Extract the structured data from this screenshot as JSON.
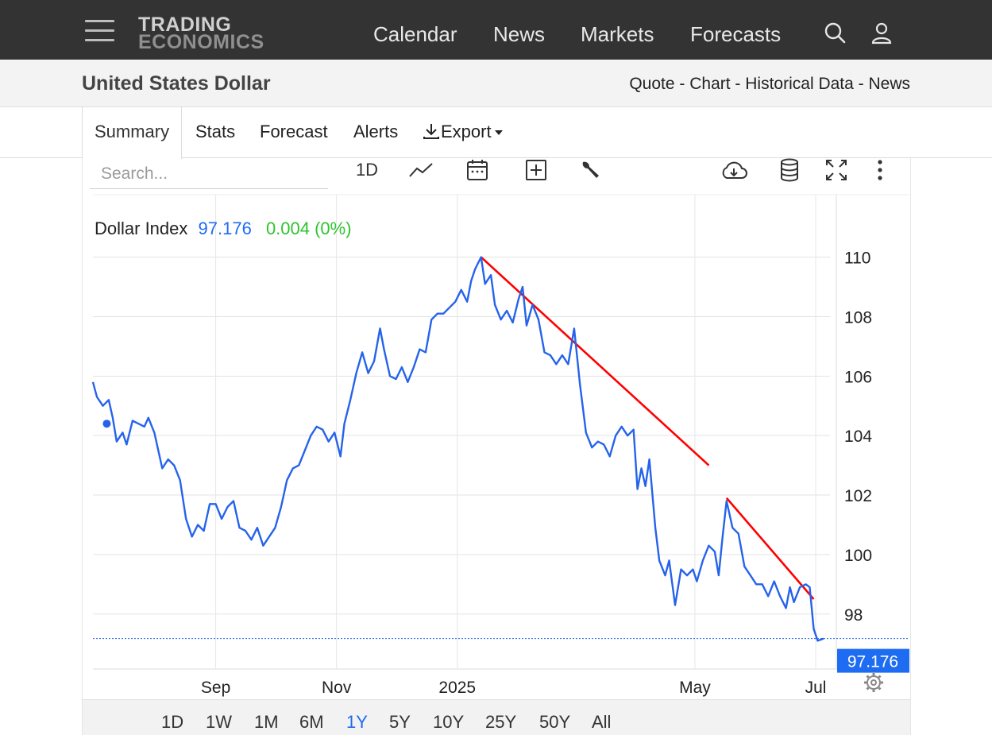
{
  "header": {
    "logo_line1": "TRADING",
    "logo_line2": "ECONOMICS",
    "nav": [
      "Calendar",
      "News",
      "Markets",
      "Forecasts"
    ],
    "bg_color": "#333333"
  },
  "subheader": {
    "title": "United States Dollar",
    "links": [
      "Quote",
      "Chart",
      "Historical Data",
      "News"
    ],
    "separator": " - "
  },
  "tabs": [
    {
      "label": "Summary",
      "active": true
    },
    {
      "label": "Stats"
    },
    {
      "label": "Forecast"
    },
    {
      "label": "Alerts"
    },
    {
      "label": "Export"
    }
  ],
  "toolbar": {
    "search_placeholder": "Search...",
    "interval_label": "1D",
    "icons": [
      "line-chart-icon",
      "calendar-icon",
      "plus-box-icon",
      "wrench-icon",
      "cloud-download-icon",
      "database-icon",
      "fullscreen-icon",
      "more-vert-icon"
    ]
  },
  "quote": {
    "name": "Dollar Index",
    "price": "97.176",
    "change": "0.004 (0%)",
    "price_color": "#1e6cf2",
    "change_color": "#2ec42e"
  },
  "ranges": {
    "items": [
      "1D",
      "1W",
      "1M",
      "6M",
      "1Y",
      "5Y",
      "10Y",
      "25Y",
      "50Y",
      "All"
    ],
    "active": "1Y"
  },
  "chart_data": {
    "type": "line",
    "series": [
      {
        "color": "#2563eb",
        "points": [
          [
            "2024-07-01",
            105.8
          ],
          [
            "2024-07-03",
            105.3
          ],
          [
            "2024-07-06",
            105.0
          ],
          [
            "2024-07-09",
            105.2
          ],
          [
            "2024-07-11",
            104.6
          ],
          [
            "2024-07-13",
            103.8
          ],
          [
            "2024-07-16",
            104.1
          ],
          [
            "2024-07-18",
            103.7
          ],
          [
            "2024-07-21",
            104.5
          ],
          [
            "2024-07-24",
            104.4
          ],
          [
            "2024-07-27",
            104.3
          ],
          [
            "2024-07-29",
            104.6
          ],
          [
            "2024-08-01",
            104.1
          ],
          [
            "2024-08-03",
            103.5
          ],
          [
            "2024-08-05",
            102.9
          ],
          [
            "2024-08-08",
            103.2
          ],
          [
            "2024-08-11",
            103.0
          ],
          [
            "2024-08-14",
            102.5
          ],
          [
            "2024-08-17",
            101.2
          ],
          [
            "2024-08-20",
            100.6
          ],
          [
            "2024-08-23",
            101.0
          ],
          [
            "2024-08-26",
            100.8
          ],
          [
            "2024-08-29",
            101.7
          ],
          [
            "2024-09-01",
            101.7
          ],
          [
            "2024-09-04",
            101.2
          ],
          [
            "2024-09-07",
            101.6
          ],
          [
            "2024-09-10",
            101.8
          ],
          [
            "2024-09-13",
            100.9
          ],
          [
            "2024-09-16",
            100.8
          ],
          [
            "2024-09-19",
            100.5
          ],
          [
            "2024-09-22",
            100.9
          ],
          [
            "2024-09-25",
            100.3
          ],
          [
            "2024-09-28",
            100.6
          ],
          [
            "2024-10-01",
            100.9
          ],
          [
            "2024-10-04",
            101.6
          ],
          [
            "2024-10-07",
            102.5
          ],
          [
            "2024-10-10",
            102.9
          ],
          [
            "2024-10-13",
            103.0
          ],
          [
            "2024-10-16",
            103.5
          ],
          [
            "2024-10-19",
            104.0
          ],
          [
            "2024-10-22",
            104.3
          ],
          [
            "2024-10-25",
            104.2
          ],
          [
            "2024-10-28",
            103.8
          ],
          [
            "2024-10-31",
            104.1
          ],
          [
            "2024-11-03",
            103.3
          ],
          [
            "2024-11-05",
            104.4
          ],
          [
            "2024-11-08",
            105.2
          ],
          [
            "2024-11-11",
            106.1
          ],
          [
            "2024-11-14",
            106.8
          ],
          [
            "2024-11-17",
            106.1
          ],
          [
            "2024-11-20",
            106.5
          ],
          [
            "2024-11-23",
            107.6
          ],
          [
            "2024-11-25",
            106.9
          ],
          [
            "2024-11-28",
            106.0
          ],
          [
            "2024-12-01",
            105.9
          ],
          [
            "2024-12-04",
            106.3
          ],
          [
            "2024-12-07",
            105.8
          ],
          [
            "2024-12-10",
            106.3
          ],
          [
            "2024-12-13",
            106.9
          ],
          [
            "2024-12-16",
            106.8
          ],
          [
            "2024-12-19",
            107.9
          ],
          [
            "2024-12-22",
            108.1
          ],
          [
            "2024-12-25",
            108.1
          ],
          [
            "2024-12-28",
            108.3
          ],
          [
            "2024-12-31",
            108.5
          ],
          [
            "2025-01-03",
            108.9
          ],
          [
            "2025-01-06",
            108.5
          ],
          [
            "2025-01-08",
            109.2
          ],
          [
            "2025-01-10",
            109.6
          ],
          [
            "2025-01-13",
            110.0
          ],
          [
            "2025-01-15",
            109.1
          ],
          [
            "2025-01-18",
            109.4
          ],
          [
            "2025-01-20",
            108.4
          ],
          [
            "2025-01-23",
            107.9
          ],
          [
            "2025-01-26",
            108.2
          ],
          [
            "2025-01-29",
            107.8
          ],
          [
            "2025-02-01",
            108.6
          ],
          [
            "2025-02-03",
            109.0
          ],
          [
            "2025-02-05",
            107.7
          ],
          [
            "2025-02-08",
            108.4
          ],
          [
            "2025-02-11",
            107.9
          ],
          [
            "2025-02-14",
            106.8
          ],
          [
            "2025-02-17",
            106.7
          ],
          [
            "2025-02-20",
            106.4
          ],
          [
            "2025-02-23",
            106.7
          ],
          [
            "2025-02-26",
            106.4
          ],
          [
            "2025-03-01",
            107.6
          ],
          [
            "2025-03-04",
            105.7
          ],
          [
            "2025-03-07",
            104.1
          ],
          [
            "2025-03-10",
            103.6
          ],
          [
            "2025-03-13",
            103.8
          ],
          [
            "2025-03-16",
            103.7
          ],
          [
            "2025-03-19",
            103.3
          ],
          [
            "2025-03-22",
            104.0
          ],
          [
            "2025-03-25",
            104.3
          ],
          [
            "2025-03-28",
            104.0
          ],
          [
            "2025-03-31",
            104.2
          ],
          [
            "2025-04-02",
            102.2
          ],
          [
            "2025-04-04",
            102.9
          ],
          [
            "2025-04-06",
            102.3
          ],
          [
            "2025-04-08",
            103.2
          ],
          [
            "2025-04-11",
            100.9
          ],
          [
            "2025-04-13",
            99.8
          ],
          [
            "2025-04-16",
            99.3
          ],
          [
            "2025-04-18",
            99.8
          ],
          [
            "2025-04-21",
            98.3
          ],
          [
            "2025-04-24",
            99.5
          ],
          [
            "2025-04-27",
            99.3
          ],
          [
            "2025-04-30",
            99.5
          ],
          [
            "2025-05-02",
            99.1
          ],
          [
            "2025-05-05",
            99.8
          ],
          [
            "2025-05-08",
            100.3
          ],
          [
            "2025-05-11",
            100.1
          ],
          [
            "2025-05-13",
            99.3
          ],
          [
            "2025-05-15",
            100.6
          ],
          [
            "2025-05-17",
            101.8
          ],
          [
            "2025-05-20",
            100.9
          ],
          [
            "2025-05-23",
            100.7
          ],
          [
            "2025-05-26",
            99.6
          ],
          [
            "2025-05-29",
            99.3
          ],
          [
            "2025-06-01",
            99.0
          ],
          [
            "2025-06-04",
            99.0
          ],
          [
            "2025-06-07",
            98.6
          ],
          [
            "2025-06-10",
            99.1
          ],
          [
            "2025-06-13",
            98.6
          ],
          [
            "2025-06-16",
            98.2
          ],
          [
            "2025-06-18",
            98.9
          ],
          [
            "2025-06-20",
            98.4
          ],
          [
            "2025-06-23",
            98.9
          ],
          [
            "2025-06-26",
            99.0
          ],
          [
            "2025-06-28",
            98.9
          ],
          [
            "2025-06-30",
            97.5
          ],
          [
            "2025-07-02",
            97.1
          ],
          [
            "2025-07-05",
            97.176
          ]
        ]
      }
    ],
    "trendlines": [
      {
        "color": "#ff0000",
        "from": [
          "2025-01-13",
          110.0
        ],
        "to": [
          "2025-05-08",
          103.0
        ]
      },
      {
        "color": "#ff0000",
        "from": [
          "2025-05-17",
          101.9
        ],
        "to": [
          "2025-06-30",
          98.5
        ]
      }
    ],
    "last_value": 97.176,
    "last_value_label": "97.176",
    "marker": [
      "2024-07-08",
      104.4
    ],
    "x_ticks": [
      {
        "date": "2024-09-01",
        "label": "Sep"
      },
      {
        "date": "2024-11-01",
        "label": "Nov"
      },
      {
        "date": "2025-01-01",
        "label": "2025"
      },
      {
        "date": "2025-05-01",
        "label": "May"
      },
      {
        "date": "2025-07-01",
        "label": "Jul"
      }
    ],
    "y_ticks": [
      98,
      100,
      102,
      104,
      106,
      108,
      110
    ],
    "xlim": [
      "2024-07-01",
      "2025-07-05"
    ],
    "ylim": [
      96.15,
      112.1
    ],
    "grid": true,
    "axis_side": "right"
  }
}
